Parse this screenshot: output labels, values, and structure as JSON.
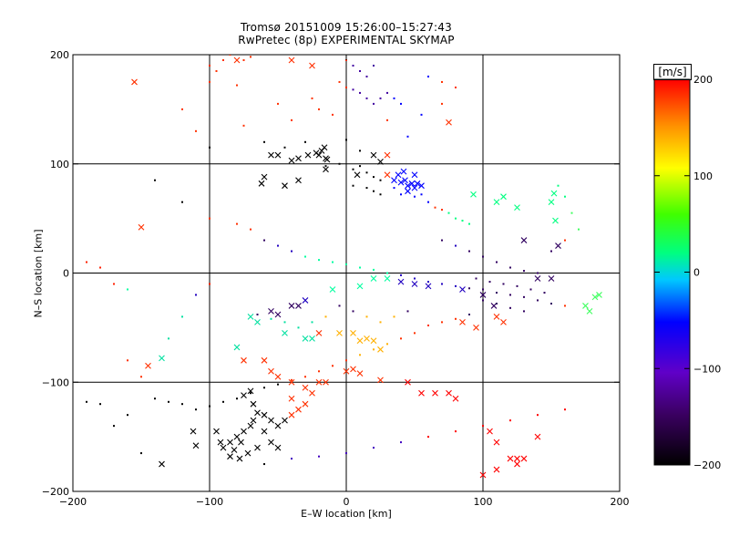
{
  "chart_data": {
    "type": "scatter",
    "title": "Tromsø 20151009 15:26:00–15:27:43",
    "subtitle": "RwPretec (8p) EXPERIMENTAL SKYMAP",
    "xlabel": "E–W location [km]",
    "ylabel": "N–S location [km]",
    "xlim": [
      -200,
      200
    ],
    "ylim": [
      -200,
      200
    ],
    "xticks": [
      "−200",
      "−100",
      "0",
      "100",
      "200"
    ],
    "yticks": [
      "200",
      "100",
      "0",
      "−100",
      "−200"
    ],
    "grid": true,
    "gridlines": [
      -100,
      0,
      100
    ],
    "colorbar": {
      "unit": "[m/s]",
      "range": [
        -200,
        200
      ],
      "ticks": [
        "200",
        "100",
        "0",
        "−100",
        "−200"
      ],
      "colormap": "black-purple-blue-cyan-green-yellow-orange-red"
    },
    "series": [
      {
        "marker": "x",
        "points": [
          [
            -155,
            175
          ],
          [
            -80,
            195
          ],
          [
            -40,
            195
          ],
          [
            -25,
            190
          ],
          [
            -15,
            105
          ],
          [
            -20,
            108
          ],
          [
            -18,
            112
          ],
          [
            -22,
            110
          ],
          [
            -14,
            104
          ],
          [
            -16,
            115
          ],
          [
            -55,
            108
          ],
          [
            -50,
            108
          ],
          [
            -40,
            103
          ],
          [
            -35,
            105
          ],
          [
            -28,
            108
          ],
          [
            20,
            108
          ],
          [
            30,
            108
          ],
          [
            -60,
            88
          ],
          [
            -35,
            85
          ],
          [
            -150,
            42
          ],
          [
            -62,
            82
          ],
          [
            -45,
            80
          ],
          [
            -15,
            95
          ],
          [
            8,
            90
          ],
          [
            35,
            85
          ],
          [
            38,
            90
          ],
          [
            40,
            83
          ],
          [
            43,
            85
          ],
          [
            45,
            80
          ],
          [
            48,
            82
          ],
          [
            50,
            78
          ],
          [
            52,
            82
          ],
          [
            55,
            80
          ],
          [
            42,
            93
          ],
          [
            30,
            90
          ],
          [
            50,
            90
          ],
          [
            45,
            75
          ],
          [
            25,
            102
          ],
          [
            93,
            72
          ],
          [
            75,
            138
          ],
          [
            115,
            70
          ],
          [
            110,
            65
          ],
          [
            125,
            60
          ],
          [
            150,
            65
          ],
          [
            152,
            73
          ],
          [
            153,
            48
          ],
          [
            130,
            30
          ],
          [
            155,
            25
          ],
          [
            140,
            -5
          ],
          [
            150,
            -5
          ],
          [
            30,
            -5
          ],
          [
            40,
            -8
          ],
          [
            50,
            -10
          ],
          [
            60,
            -12
          ],
          [
            85,
            -15
          ],
          [
            100,
            -20
          ],
          [
            108,
            -30
          ],
          [
            110,
            -40
          ],
          [
            115,
            -45
          ],
          [
            95,
            -50
          ],
          [
            85,
            -45
          ],
          [
            20,
            -5
          ],
          [
            10,
            -12
          ],
          [
            -10,
            -15
          ],
          [
            -30,
            -25
          ],
          [
            -35,
            -30
          ],
          [
            -40,
            -30
          ],
          [
            -50,
            -38
          ],
          [
            -55,
            -35
          ],
          [
            -65,
            -45
          ],
          [
            -70,
            -40
          ],
          [
            -45,
            -55
          ],
          [
            -30,
            -60
          ],
          [
            -25,
            -60
          ],
          [
            -20,
            -55
          ],
          [
            -5,
            -55
          ],
          [
            5,
            -55
          ],
          [
            10,
            -62
          ],
          [
            15,
            -60
          ],
          [
            20,
            -62
          ],
          [
            25,
            -70
          ],
          [
            -80,
            -68
          ],
          [
            -75,
            -80
          ],
          [
            -60,
            -80
          ],
          [
            -55,
            -90
          ],
          [
            -50,
            -95
          ],
          [
            -40,
            -100
          ],
          [
            -20,
            -100
          ],
          [
            -15,
            -100
          ],
          [
            0,
            -90
          ],
          [
            5,
            -88
          ],
          [
            10,
            -92
          ],
          [
            25,
            -98
          ],
          [
            45,
            -100
          ],
          [
            55,
            -110
          ],
          [
            65,
            -110
          ],
          [
            75,
            -110
          ],
          [
            80,
            -115
          ],
          [
            -135,
            -78
          ],
          [
            -145,
            -85
          ],
          [
            -70,
            -108
          ],
          [
            -75,
            -112
          ],
          [
            -68,
            -120
          ],
          [
            -65,
            -128
          ],
          [
            -60,
            -130
          ],
          [
            -55,
            -135
          ],
          [
            -50,
            -140
          ],
          [
            -60,
            -145
          ],
          [
            -70,
            -140
          ],
          [
            -75,
            -145
          ],
          [
            -80,
            -150
          ],
          [
            -85,
            -155
          ],
          [
            -90,
            -160
          ],
          [
            -82,
            -162
          ],
          [
            -78,
            -170
          ],
          [
            -72,
            -165
          ],
          [
            -65,
            -160
          ],
          [
            -55,
            -155
          ],
          [
            -45,
            -135
          ],
          [
            -40,
            -130
          ],
          [
            -35,
            -125
          ],
          [
            -30,
            -120
          ],
          [
            -40,
            -115
          ],
          [
            -30,
            -105
          ],
          [
            -25,
            -110
          ],
          [
            -50,
            -160
          ],
          [
            -95,
            -145
          ],
          [
            -112,
            -145
          ],
          [
            -110,
            -158
          ],
          [
            -135,
            -175
          ],
          [
            105,
            -145
          ],
          [
            110,
            -155
          ],
          [
            110,
            -180
          ],
          [
            125,
            -175
          ],
          [
            100,
            -185
          ],
          [
            120,
            -170
          ],
          [
            130,
            -170
          ],
          [
            140,
            -150
          ],
          [
            -92,
            -155
          ],
          [
            -68,
            -135
          ],
          [
            -77,
            -155
          ],
          [
            -85,
            -168
          ],
          [
            125,
            -170
          ],
          [
            175,
            -30
          ],
          [
            178,
            -35
          ],
          [
            182,
            -22
          ],
          [
            185,
            -20
          ]
        ]
      },
      {
        "marker": "dot",
        "points": [
          [
            -90,
            195
          ],
          [
            -85,
            200
          ],
          [
            -75,
            195
          ],
          [
            -70,
            198
          ],
          [
            -100,
            190
          ],
          [
            -95,
            185
          ],
          [
            -100,
            175
          ],
          [
            -80,
            172
          ],
          [
            0,
            195
          ],
          [
            5,
            190
          ],
          [
            10,
            185
          ],
          [
            15,
            180
          ],
          [
            20,
            190
          ],
          [
            -5,
            175
          ],
          [
            0,
            170
          ],
          [
            5,
            168
          ],
          [
            10,
            165
          ],
          [
            15,
            160
          ],
          [
            20,
            155
          ],
          [
            25,
            160
          ],
          [
            30,
            165
          ],
          [
            35,
            160
          ],
          [
            40,
            155
          ],
          [
            -25,
            160
          ],
          [
            -20,
            150
          ],
          [
            -10,
            145
          ],
          [
            55,
            145
          ],
          [
            70,
            155
          ],
          [
            30,
            140
          ],
          [
            45,
            125
          ],
          [
            -60,
            120
          ],
          [
            -45,
            115
          ],
          [
            -30,
            120
          ],
          [
            0,
            122
          ],
          [
            10,
            112
          ],
          [
            -5,
            100
          ],
          [
            -15,
            98
          ],
          [
            5,
            95
          ],
          [
            10,
            98
          ],
          [
            15,
            92
          ],
          [
            20,
            88
          ],
          [
            25,
            85
          ],
          [
            5,
            80
          ],
          [
            15,
            78
          ],
          [
            20,
            75
          ],
          [
            25,
            72
          ],
          [
            35,
            78
          ],
          [
            40,
            72
          ],
          [
            50,
            70
          ],
          [
            55,
            72
          ],
          [
            60,
            65
          ],
          [
            65,
            60
          ],
          [
            70,
            58
          ],
          [
            75,
            55
          ],
          [
            80,
            50
          ],
          [
            85,
            48
          ],
          [
            90,
            45
          ],
          [
            -140,
            85
          ],
          [
            -120,
            65
          ],
          [
            -100,
            50
          ],
          [
            -80,
            45
          ],
          [
            -70,
            40
          ],
          [
            -60,
            30
          ],
          [
            -50,
            25
          ],
          [
            -40,
            20
          ],
          [
            -30,
            15
          ],
          [
            -20,
            12
          ],
          [
            -10,
            10
          ],
          [
            0,
            8
          ],
          [
            10,
            5
          ],
          [
            20,
            3
          ],
          [
            30,
            0
          ],
          [
            40,
            -2
          ],
          [
            50,
            -5
          ],
          [
            60,
            -8
          ],
          [
            70,
            -10
          ],
          [
            80,
            -12
          ],
          [
            90,
            -14
          ],
          [
            100,
            -15
          ],
          [
            110,
            -18
          ],
          [
            120,
            -20
          ],
          [
            130,
            -22
          ],
          [
            140,
            -25
          ],
          [
            150,
            -28
          ],
          [
            160,
            -30
          ],
          [
            95,
            -5
          ],
          [
            105,
            -8
          ],
          [
            115,
            -10
          ],
          [
            125,
            -12
          ],
          [
            135,
            -15
          ],
          [
            145,
            -18
          ],
          [
            100,
            -25
          ],
          [
            110,
            -28
          ],
          [
            120,
            -32
          ],
          [
            130,
            -35
          ],
          [
            90,
            -38
          ],
          [
            80,
            -42
          ],
          [
            70,
            -45
          ],
          [
            60,
            -48
          ],
          [
            50,
            -55
          ],
          [
            40,
            -60
          ],
          [
            30,
            -65
          ],
          [
            20,
            -70
          ],
          [
            10,
            -75
          ],
          [
            0,
            -80
          ],
          [
            -10,
            -85
          ],
          [
            -20,
            -90
          ],
          [
            -30,
            -95
          ],
          [
            -40,
            -98
          ],
          [
            -50,
            -102
          ],
          [
            -60,
            -105
          ],
          [
            -70,
            -110
          ],
          [
            -80,
            -115
          ],
          [
            -90,
            -118
          ],
          [
            -100,
            -122
          ],
          [
            -110,
            -125
          ],
          [
            -120,
            -120
          ],
          [
            -130,
            -118
          ],
          [
            -140,
            -115
          ],
          [
            -160,
            -130
          ],
          [
            -170,
            -140
          ],
          [
            -180,
            -120
          ],
          [
            -190,
            -118
          ],
          [
            -150,
            -165
          ],
          [
            -60,
            -175
          ],
          [
            -40,
            -170
          ],
          [
            -20,
            -168
          ],
          [
            0,
            -165
          ],
          [
            20,
            -160
          ],
          [
            40,
            -155
          ],
          [
            60,
            -150
          ],
          [
            80,
            -145
          ],
          [
            100,
            -140
          ],
          [
            120,
            -135
          ],
          [
            140,
            -130
          ],
          [
            160,
            -125
          ],
          [
            -5,
            -30
          ],
          [
            5,
            -35
          ],
          [
            15,
            -40
          ],
          [
            25,
            -45
          ],
          [
            35,
            -40
          ],
          [
            45,
            -35
          ],
          [
            -15,
            -40
          ],
          [
            -25,
            -45
          ],
          [
            -35,
            -50
          ],
          [
            -45,
            -45
          ],
          [
            -55,
            -42
          ],
          [
            -65,
            -38
          ],
          [
            70,
            30
          ],
          [
            80,
            25
          ],
          [
            90,
            20
          ],
          [
            100,
            15
          ],
          [
            110,
            10
          ],
          [
            120,
            5
          ],
          [
            130,
            2
          ],
          [
            140,
            0
          ],
          [
            -160,
            -80
          ],
          [
            -150,
            -95
          ],
          [
            -130,
            -60
          ],
          [
            -120,
            -40
          ],
          [
            -110,
            -20
          ],
          [
            -100,
            -10
          ],
          [
            -190,
            10
          ],
          [
            -180,
            5
          ],
          [
            -170,
            -10
          ],
          [
            -160,
            -15
          ],
          [
            155,
            80
          ],
          [
            160,
            70
          ],
          [
            165,
            55
          ],
          [
            170,
            40
          ],
          [
            160,
            30
          ],
          [
            150,
            20
          ],
          [
            60,
            180
          ],
          [
            70,
            175
          ],
          [
            80,
            170
          ],
          [
            -120,
            150
          ],
          [
            -110,
            130
          ],
          [
            -100,
            115
          ],
          [
            -75,
            135
          ],
          [
            -50,
            155
          ],
          [
            -40,
            140
          ]
        ]
      }
    ]
  }
}
